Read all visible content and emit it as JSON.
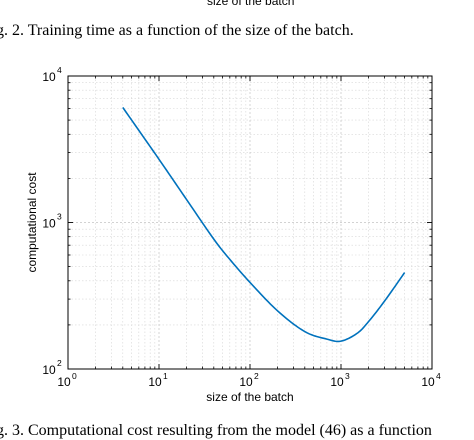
{
  "captions": {
    "prev_axis_label": "size of the batch",
    "fig2_text": "g. 2.    Training time as a function of the size of the batch.",
    "fig3_text": "g. 3.    Computational cost resulting from the model (46) as a function"
  },
  "chart_data": {
    "type": "line",
    "x_scale": "log",
    "y_scale": "log",
    "xlim": [
      1,
      10000
    ],
    "ylim": [
      100,
      10000
    ],
    "grid": true,
    "xlabel": "size of the batch",
    "ylabel": "computational cost",
    "x_ticks": [
      {
        "value": 1,
        "base": "10",
        "exp": "0"
      },
      {
        "value": 10,
        "base": "10",
        "exp": "1"
      },
      {
        "value": 100,
        "base": "10",
        "exp": "2"
      },
      {
        "value": 1000,
        "base": "10",
        "exp": "3"
      },
      {
        "value": 10000,
        "base": "10",
        "exp": "4"
      }
    ],
    "y_ticks": [
      {
        "value": 100,
        "base": "10",
        "exp": "2"
      },
      {
        "value": 1000,
        "base": "10",
        "exp": "3"
      },
      {
        "value": 10000,
        "base": "10",
        "exp": "4"
      }
    ],
    "series": [
      {
        "color": "#0072bd",
        "x": [
          4,
          10,
          20,
          40,
          60,
          100,
          200,
          400,
          700,
          1000,
          1500,
          2000,
          3000,
          5000
        ],
        "y": [
          6100,
          2700,
          1440,
          770,
          560,
          390,
          250,
          180,
          160,
          155,
          175,
          210,
          290,
          455
        ]
      }
    ]
  }
}
